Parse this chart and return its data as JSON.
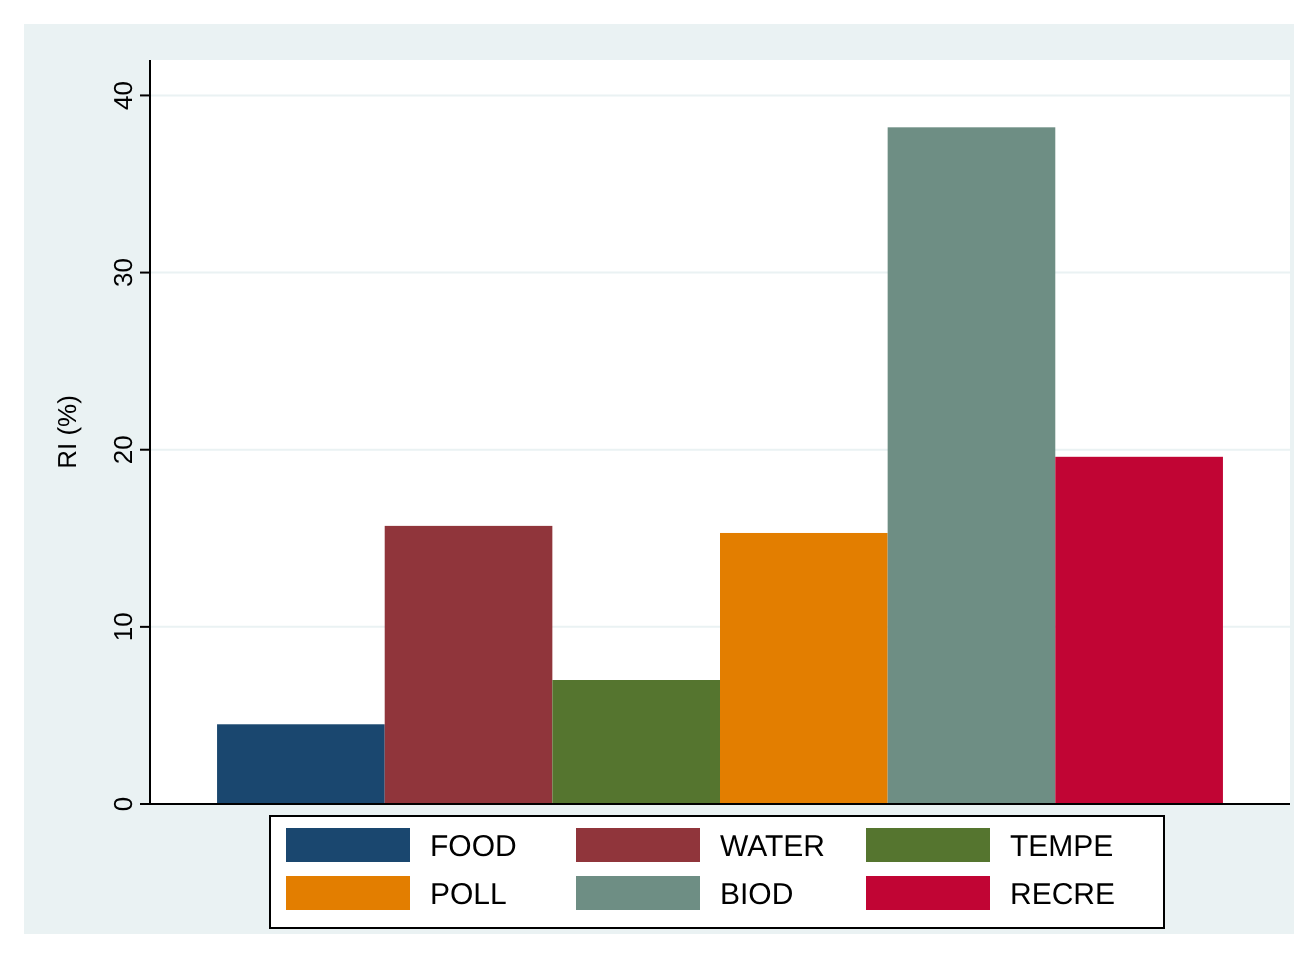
{
  "chart_data": {
    "type": "bar",
    "ylabel": "RI (%)",
    "categories": [
      null
    ],
    "ylim": [
      0,
      42
    ],
    "yticks": [
      0,
      10,
      20,
      30,
      40
    ],
    "grid": "y",
    "legend": "bottom",
    "series": [
      {
        "name": "FOOD",
        "color": "#1a476f",
        "values": [
          4.5
        ]
      },
      {
        "name": "WATER",
        "color": "#90353b",
        "values": [
          15.7
        ]
      },
      {
        "name": "TEMPE",
        "color": "#55752f",
        "values": [
          7.0
        ]
      },
      {
        "name": "POLL",
        "color": "#e37e00",
        "values": [
          15.3
        ]
      },
      {
        "name": "BIOD",
        "color": "#6e8e84",
        "values": [
          38.2
        ]
      },
      {
        "name": "RECRE",
        "color": "#c10534",
        "values": [
          19.6
        ]
      }
    ]
  }
}
